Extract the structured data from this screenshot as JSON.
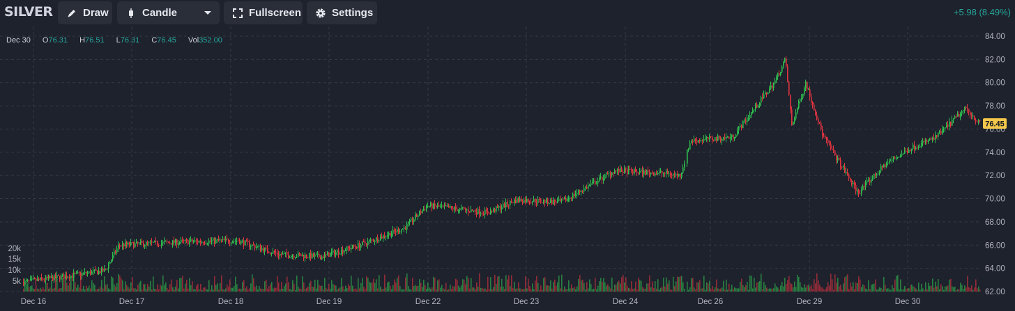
{
  "symbol": "SILVER",
  "toolbar": {
    "draw_label": "Draw",
    "chart_type_label": "Candle",
    "fullscreen_label": "Fullscreen",
    "settings_label": "Settings"
  },
  "change_text": "+5.98 (8.49%)",
  "ohlc": {
    "date": "Dec 30",
    "o_label": "O",
    "o": "76.31",
    "h_label": "H",
    "h": "76.51",
    "l_label": "L",
    "l": "76.31",
    "c_label": "C",
    "c": "76.45",
    "vol_label": "Vol",
    "vol": "352.00"
  },
  "colors": {
    "up": "#2fbf4f",
    "down": "#e0343f",
    "background": "#1e222d",
    "grid": "#363a45",
    "last_price_tag": "#f4c74b"
  },
  "chart_data": {
    "type": "candlestick",
    "title": "",
    "price_axis": {
      "ylim": [
        62,
        84
      ],
      "ticks": [
        "62.00",
        "64.00",
        "66.00",
        "68.00",
        "70.00",
        "72.00",
        "74.00",
        "76.00",
        "78.00",
        "80.00",
        "82.00",
        "84.00"
      ]
    },
    "volume_axis": {
      "ticks": [
        "5k",
        "10k",
        "15k",
        "20k"
      ]
    },
    "x_ticks": [
      "Dec 16",
      "Dec 17",
      "Dec 18",
      "Dec 19",
      "Dec 22",
      "Dec 23",
      "Dec 24",
      "Dec 26",
      "Dec 29",
      "Dec 30"
    ],
    "last_price": "76.45",
    "grid": true,
    "close_path": [
      {
        "date": "Dec 16",
        "close": 62.8
      },
      {
        "date": "Dec 16",
        "close": 63.8
      },
      {
        "date": "Dec 17",
        "close": 66.0
      },
      {
        "date": "Dec 17",
        "close": 66.3
      },
      {
        "date": "Dec 18",
        "close": 66.4
      },
      {
        "date": "Dec 18",
        "close": 65.2
      },
      {
        "date": "Dec 19",
        "close": 65.0
      },
      {
        "date": "Dec 19",
        "close": 66.1
      },
      {
        "date": "Dec 19",
        "close": 67.5
      },
      {
        "date": "Dec 22",
        "close": 69.4
      },
      {
        "date": "Dec 22",
        "close": 68.8
      },
      {
        "date": "Dec 23",
        "close": 69.9
      },
      {
        "date": "Dec 23",
        "close": 69.7
      },
      {
        "date": "Dec 23",
        "close": 72.4
      },
      {
        "date": "Dec 24",
        "close": 72.2
      },
      {
        "date": "Dec 24",
        "close": 72.0
      },
      {
        "date": "Dec 24",
        "close": 75.0
      },
      {
        "date": "Dec 26",
        "close": 75.3
      },
      {
        "date": "Dec 26",
        "close": 80.0
      },
      {
        "date": "Dec 26",
        "close": 82.0
      },
      {
        "date": "Dec 26",
        "close": 76.3
      },
      {
        "date": "Dec 29",
        "close": 80.0
      },
      {
        "date": "Dec 29",
        "close": 75.4
      },
      {
        "date": "Dec 29",
        "close": 70.5
      },
      {
        "date": "Dec 29",
        "close": 73.0
      },
      {
        "date": "Dec 30",
        "close": 74.5
      },
      {
        "date": "Dec 30",
        "close": 75.2
      },
      {
        "date": "Dec 30",
        "close": 77.8
      },
      {
        "date": "Dec 30",
        "close": 76.45
      }
    ]
  }
}
